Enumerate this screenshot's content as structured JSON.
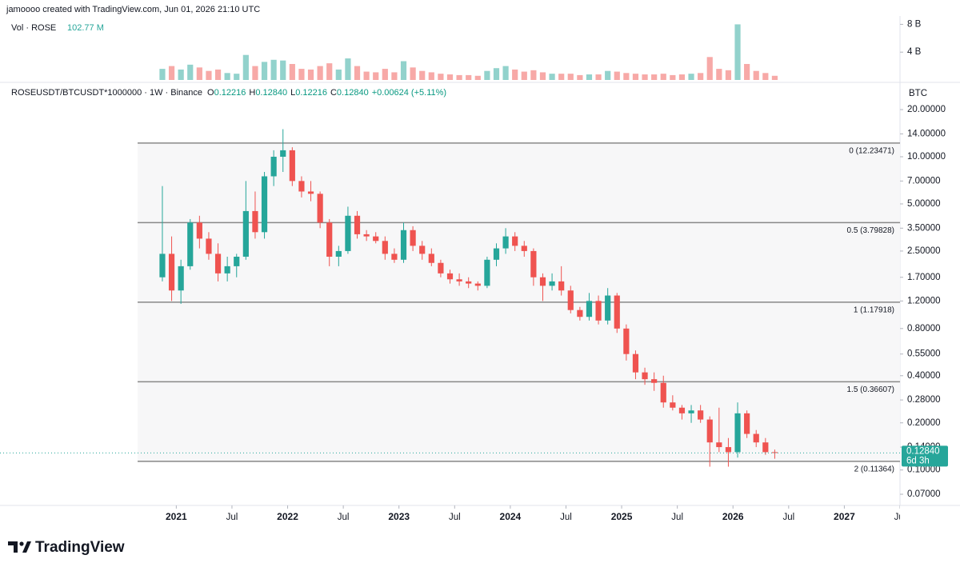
{
  "header": "jamoooo created with TradingView.com, Jun 01, 2026 21:10 UTC",
  "logo": "TradingView",
  "chart_data": {
    "type": "candlestick",
    "symbol": "ROSEUSDT/BTCUSDT*1000000 · 1W · Binance",
    "legend_ohlc": [
      {
        "label": "O",
        "value": "0.12216"
      },
      {
        "label": "H",
        "value": "0.12840"
      },
      {
        "label": "L",
        "value": "0.12216"
      },
      {
        "label": "C",
        "value": "0.12840"
      }
    ],
    "legend_change": "+0.00624 (+5.11%)",
    "y_unit": "BTC",
    "log_scale": true,
    "up_color": "#26a69a",
    "down_color": "#ef5350",
    "x": [
      "2020-11",
      "2020-12",
      "2021-01",
      "2021-02",
      "2021-03",
      "2021-04",
      "2021-05",
      "2021-06",
      "2021-07",
      "2021-08",
      "2021-09",
      "2021-10",
      "2021-11",
      "2021-12",
      "2022-01",
      "2022-02",
      "2022-03",
      "2022-04",
      "2022-05",
      "2022-06",
      "2022-07",
      "2022-08",
      "2022-09",
      "2022-10",
      "2022-11",
      "2022-12",
      "2023-01",
      "2023-02",
      "2023-03",
      "2023-04",
      "2023-05",
      "2023-06",
      "2023-07",
      "2023-08",
      "2023-09",
      "2023-10",
      "2023-11",
      "2023-12",
      "2024-01",
      "2024-02",
      "2024-03",
      "2024-04",
      "2024-05",
      "2024-06",
      "2024-07",
      "2024-08",
      "2024-09",
      "2024-10",
      "2024-11",
      "2024-12",
      "2025-01",
      "2025-02",
      "2025-03",
      "2025-04",
      "2025-05",
      "2025-06",
      "2025-07",
      "2025-08",
      "2025-09",
      "2025-10",
      "2025-11",
      "2025-12",
      "2026-01",
      "2026-02",
      "2026-03",
      "2026-04",
      "2026-05"
    ],
    "open": [
      1.7,
      2.4,
      1.4,
      2.0,
      3.8,
      3.0,
      2.4,
      1.8,
      2.0,
      2.3,
      4.5,
      3.3,
      7.5,
      10.0,
      11.0,
      7.0,
      6.0,
      5.8,
      3.8,
      2.3,
      2.5,
      4.2,
      3.2,
      3.1,
      2.9,
      2.4,
      2.2,
      3.4,
      2.7,
      2.4,
      2.1,
      1.8,
      1.65,
      1.6,
      1.55,
      1.5,
      2.2,
      2.6,
      3.1,
      2.7,
      2.5,
      1.7,
      1.5,
      1.6,
      1.4,
      1.05,
      0.95,
      1.2,
      0.9,
      1.3,
      0.8,
      0.55,
      0.42,
      0.38,
      0.36,
      0.27,
      0.25,
      0.23,
      0.24,
      0.21,
      0.15,
      0.14,
      0.13,
      0.23,
      0.17,
      0.15,
      0.13
    ],
    "high": [
      6.5,
      3.1,
      2.2,
      4.0,
      4.2,
      3.3,
      2.8,
      2.3,
      2.4,
      7.0,
      6.0,
      8.0,
      11.0,
      15.0,
      11.5,
      7.5,
      7.0,
      6.0,
      4.0,
      2.7,
      4.8,
      4.5,
      3.4,
      3.3,
      3.1,
      2.6,
      3.8,
      3.6,
      2.9,
      2.6,
      2.2,
      1.9,
      1.8,
      1.7,
      1.6,
      2.3,
      2.8,
      3.5,
      3.3,
      2.9,
      2.6,
      1.8,
      1.8,
      2.0,
      1.5,
      1.1,
      1.35,
      1.3,
      1.45,
      1.35,
      0.85,
      0.58,
      0.45,
      0.42,
      0.4,
      0.3,
      0.26,
      0.26,
      0.26,
      0.22,
      0.25,
      0.16,
      0.27,
      0.24,
      0.18,
      0.16,
      0.135
    ],
    "low": [
      1.6,
      1.2,
      1.15,
      1.9,
      2.6,
      2.2,
      1.6,
      1.6,
      1.7,
      2.2,
      3.0,
      3.0,
      6.5,
      8.0,
      6.5,
      5.5,
      5.2,
      3.5,
      2.0,
      2.0,
      2.4,
      3.0,
      2.9,
      2.8,
      2.2,
      2.1,
      2.1,
      2.5,
      2.2,
      2.0,
      1.7,
      1.55,
      1.5,
      1.45,
      1.4,
      1.45,
      2.0,
      2.4,
      2.5,
      2.3,
      1.5,
      1.2,
      1.4,
      1.3,
      1.0,
      0.9,
      0.9,
      0.85,
      0.85,
      0.75,
      0.5,
      0.38,
      0.35,
      0.32,
      0.25,
      0.24,
      0.21,
      0.2,
      0.2,
      0.105,
      0.13,
      0.105,
      0.12,
      0.16,
      0.14,
      0.125,
      0.118
    ],
    "close": [
      2.4,
      1.4,
      2.0,
      3.8,
      3.0,
      2.4,
      1.8,
      2.0,
      2.3,
      4.5,
      3.3,
      7.5,
      10.0,
      11.0,
      7.0,
      6.0,
      5.8,
      3.8,
      2.3,
      2.5,
      4.2,
      3.2,
      3.1,
      2.9,
      2.4,
      2.2,
      3.4,
      2.7,
      2.4,
      2.1,
      1.8,
      1.65,
      1.6,
      1.55,
      1.5,
      2.2,
      2.6,
      3.1,
      2.7,
      2.5,
      1.7,
      1.5,
      1.6,
      1.4,
      1.05,
      0.95,
      1.2,
      0.9,
      1.3,
      0.8,
      0.55,
      0.42,
      0.38,
      0.36,
      0.27,
      0.25,
      0.23,
      0.24,
      0.21,
      0.15,
      0.14,
      0.13,
      0.23,
      0.17,
      0.15,
      0.13,
      0.1284
    ],
    "xlim": [
      "2019-06",
      "2027-07"
    ],
    "xticks": [
      {
        "value": "2021-01",
        "label": "2021"
      },
      {
        "value": "2021-07",
        "label": "Jul"
      },
      {
        "value": "2022-01",
        "label": "2022"
      },
      {
        "value": "2022-07",
        "label": "Jul"
      },
      {
        "value": "2023-01",
        "label": "2023"
      },
      {
        "value": "2023-07",
        "label": "Jul"
      },
      {
        "value": "2024-01",
        "label": "2024"
      },
      {
        "value": "2024-07",
        "label": "Jul"
      },
      {
        "value": "2025-01",
        "label": "2025"
      },
      {
        "value": "2025-07",
        "label": "Jul"
      },
      {
        "value": "2026-01",
        "label": "2026"
      },
      {
        "value": "2026-07",
        "label": "Jul"
      },
      {
        "value": "2027-01",
        "label": "2027"
      },
      {
        "value": "2027-07",
        "label": "Jul"
      }
    ],
    "ylim": [
      0.0594,
      29.5
    ],
    "yticks": [
      {
        "value": 20,
        "label": "20.00000"
      },
      {
        "value": 14,
        "label": "14.00000"
      },
      {
        "value": 10,
        "label": "10.00000"
      },
      {
        "value": 7,
        "label": "7.00000"
      },
      {
        "value": 5,
        "label": "5.00000"
      },
      {
        "value": 3.5,
        "label": "3.50000"
      },
      {
        "value": 2.5,
        "label": "2.50000"
      },
      {
        "value": 1.7,
        "label": "1.70000"
      },
      {
        "value": 1.2,
        "label": "1.20000"
      },
      {
        "value": 0.8,
        "label": "0.80000"
      },
      {
        "value": 0.55,
        "label": "0.55000"
      },
      {
        "value": 0.4,
        "label": "0.40000"
      },
      {
        "value": 0.28,
        "label": "0.28000"
      },
      {
        "value": 0.2,
        "label": "0.20000"
      },
      {
        "value": 0.14,
        "label": "0.14000"
      },
      {
        "value": 0.1,
        "label": "0.10000"
      },
      {
        "value": 0.07,
        "label": "0.07000"
      }
    ],
    "fib_levels": [
      {
        "value": 12.23471,
        "label": "0 (12.23471)"
      },
      {
        "value": 3.79828,
        "label": "0.5 (3.79828)"
      },
      {
        "value": 1.17918,
        "label": "1 (1.17918)"
      },
      {
        "value": 0.36607,
        "label": "1.5 (0.36607)"
      },
      {
        "value": 0.11364,
        "label": "2 (0.11364)"
      }
    ],
    "last_price": {
      "value": 0.1284,
      "label": "0.12840"
    },
    "countdown": "6d 3h",
    "volume": {
      "title": "Vol · ROSE",
      "last": "102.77 M",
      "values": [
        1600000000.0,
        2000000000.0,
        1500000000.0,
        2200000000.0,
        1800000000.0,
        1300000000.0,
        1500000000.0,
        1000000000.0,
        900000000.0,
        3600000000.0,
        2000000000.0,
        2600000000.0,
        2900000000.0,
        2800000000.0,
        2300000000.0,
        1600000000.0,
        1500000000.0,
        2000000000.0,
        2400000000.0,
        1500000000.0,
        3100000000.0,
        2000000000.0,
        1200000000.0,
        1100000000.0,
        1600000000.0,
        1100000000.0,
        2700000000.0,
        1800000000.0,
        1300000000.0,
        1100000000.0,
        900000000.0,
        800000000.0,
        700000000.0,
        700000000.0,
        600000000.0,
        1300000000.0,
        1700000000.0,
        2000000000.0,
        1500000000.0,
        1200000000.0,
        1400000000.0,
        1100000000.0,
        900000000.0,
        900000000.0,
        900000000.0,
        700000000.0,
        800000000.0,
        800000000.0,
        1300000000.0,
        1200000000.0,
        1000000000.0,
        900000000.0,
        800000000.0,
        800000000.0,
        900000000.0,
        700000000.0,
        800000000.0,
        900000000.0,
        1000000000.0,
        3300000000.0,
        1600000000.0,
        1400000000.0,
        8000000000.0,
        2300000000.0,
        1300000000.0,
        1000000000.0,
        600000000.0
      ],
      "ylim": [
        0,
        9200000000.0
      ],
      "yticks": [
        {
          "value": 4000000000.0,
          "label": "4 B"
        },
        {
          "value": 8000000000.0,
          "label": "8 B"
        }
      ]
    }
  }
}
